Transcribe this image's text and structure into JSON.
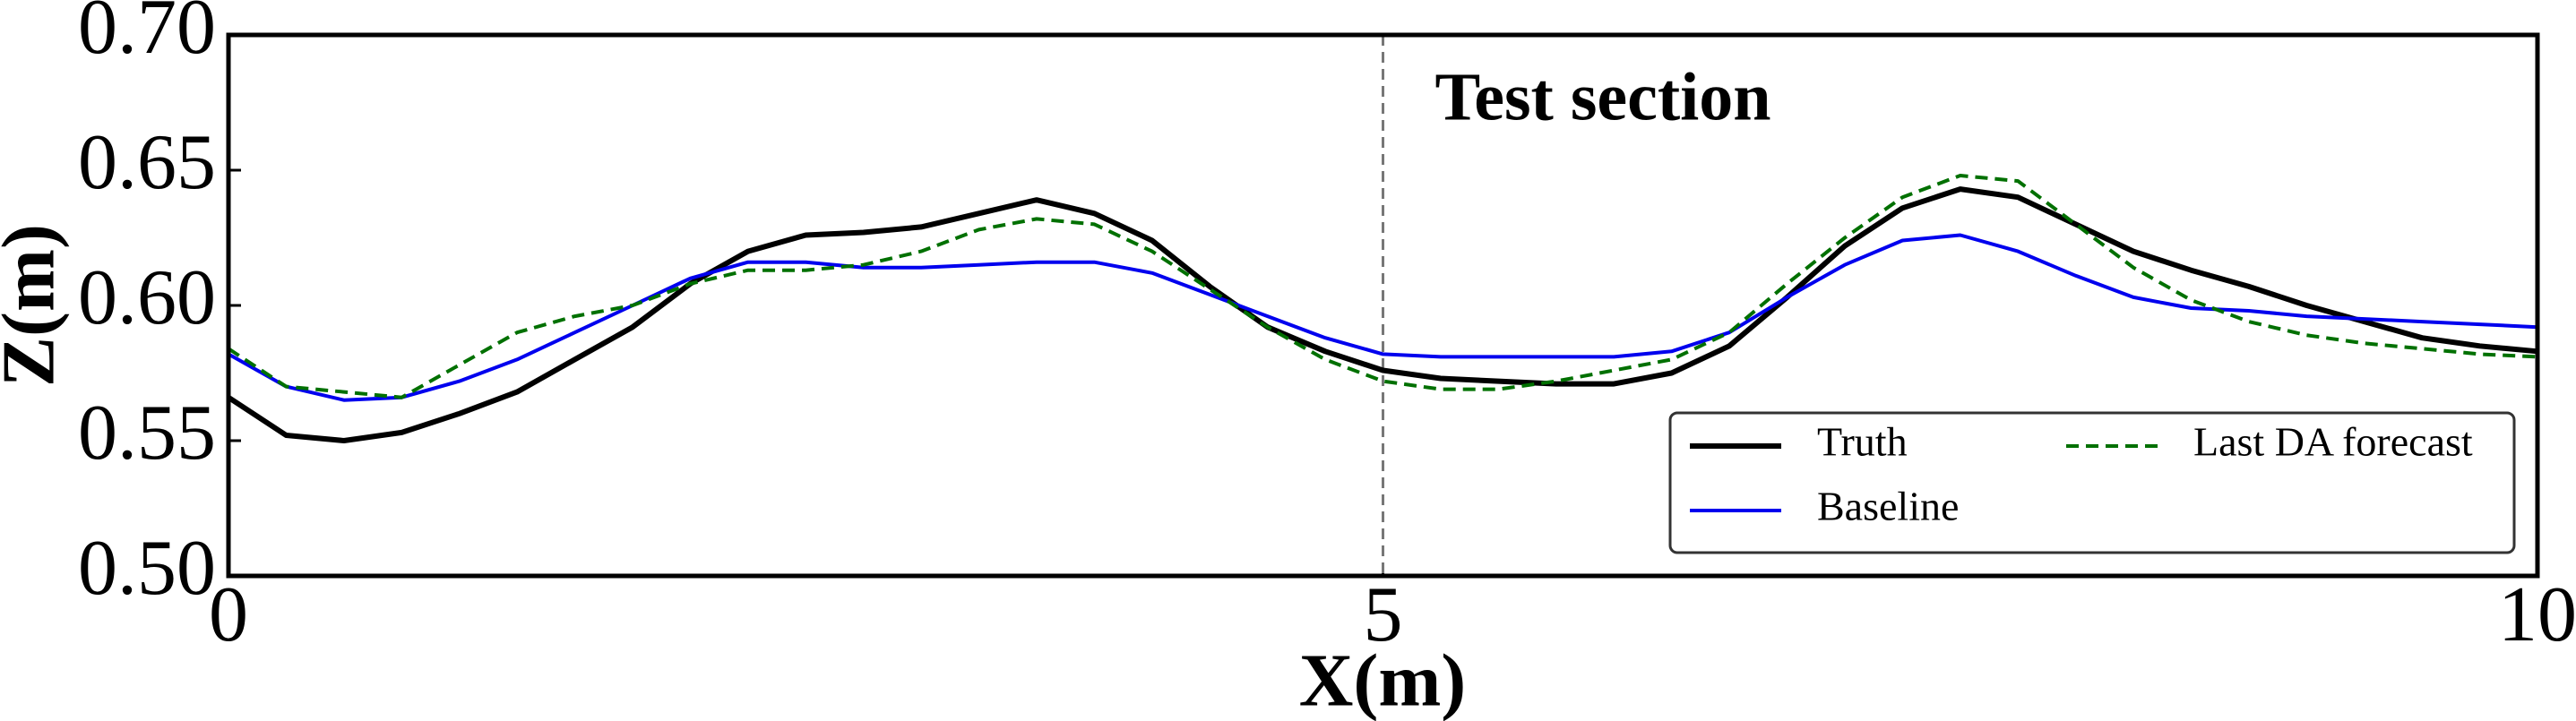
{
  "chart_data": {
    "type": "line",
    "xlabel": "X(m)",
    "ylabel": "Z(m)",
    "annotation": "Test section",
    "vline_x": 5,
    "x": [
      0,
      0.25,
      0.5,
      0.75,
      1,
      1.25,
      1.5,
      1.75,
      2,
      2.25,
      2.5,
      2.75,
      3,
      3.25,
      3.5,
      3.75,
      4,
      4.25,
      4.5,
      4.75,
      5,
      5.25,
      5.5,
      5.75,
      6,
      6.25,
      6.5,
      6.75,
      7,
      7.25,
      7.5,
      7.75,
      8,
      8.25,
      8.5,
      8.75,
      9,
      9.25,
      9.5,
      9.75,
      10
    ],
    "series": [
      {
        "name": "Truth",
        "color": "#000000",
        "linestyle": "solid",
        "linewidth": 3,
        "values": [
          0.566,
          0.552,
          0.55,
          0.553,
          0.56,
          0.568,
          0.58,
          0.592,
          0.608,
          0.62,
          0.626,
          0.627,
          0.629,
          0.634,
          0.639,
          0.634,
          0.624,
          0.607,
          0.592,
          0.583,
          0.576,
          0.573,
          0.572,
          0.571,
          0.571,
          0.575,
          0.585,
          0.603,
          0.622,
          0.636,
          0.643,
          0.64,
          0.63,
          0.62,
          0.613,
          0.607,
          0.6,
          0.594,
          0.588,
          0.585,
          0.583
        ]
      },
      {
        "name": "Baseline",
        "color": "#0000ee",
        "linestyle": "solid",
        "linewidth": 2,
        "values": [
          0.582,
          0.57,
          0.565,
          0.566,
          0.572,
          0.58,
          0.59,
          0.6,
          0.61,
          0.616,
          0.616,
          0.614,
          0.614,
          0.615,
          0.616,
          0.616,
          0.612,
          0.604,
          0.596,
          0.588,
          0.582,
          0.581,
          0.581,
          0.581,
          0.581,
          0.583,
          0.59,
          0.603,
          0.615,
          0.624,
          0.626,
          0.62,
          0.611,
          0.603,
          0.599,
          0.598,
          0.596,
          0.595,
          0.594,
          0.593,
          0.592
        ]
      },
      {
        "name": "Last DA forecast",
        "color": "#007000",
        "linestyle": "dashed",
        "linewidth": 2,
        "values": [
          0.584,
          0.57,
          0.568,
          0.566,
          0.578,
          0.59,
          0.596,
          0.6,
          0.608,
          0.613,
          0.613,
          0.615,
          0.62,
          0.628,
          0.632,
          0.63,
          0.62,
          0.606,
          0.592,
          0.58,
          0.572,
          0.569,
          0.569,
          0.572,
          0.576,
          0.58,
          0.59,
          0.608,
          0.625,
          0.64,
          0.648,
          0.646,
          0.63,
          0.614,
          0.602,
          0.594,
          0.589,
          0.586,
          0.584,
          0.582,
          0.581
        ]
      }
    ],
    "xlim": [
      0,
      10
    ],
    "xticks": [
      0,
      5,
      10
    ],
    "ylim": [
      0.5,
      0.7
    ],
    "yticks": [
      {
        "value": 0.5,
        "label": "0.50"
      },
      0.55,
      {
        "value": 0.6,
        "label": "0.60"
      },
      0.65,
      {
        "value": 0.7,
        "label": "0.70"
      }
    ],
    "legend_loc": "lower right",
    "legend_ncol": 2,
    "grid": false
  }
}
